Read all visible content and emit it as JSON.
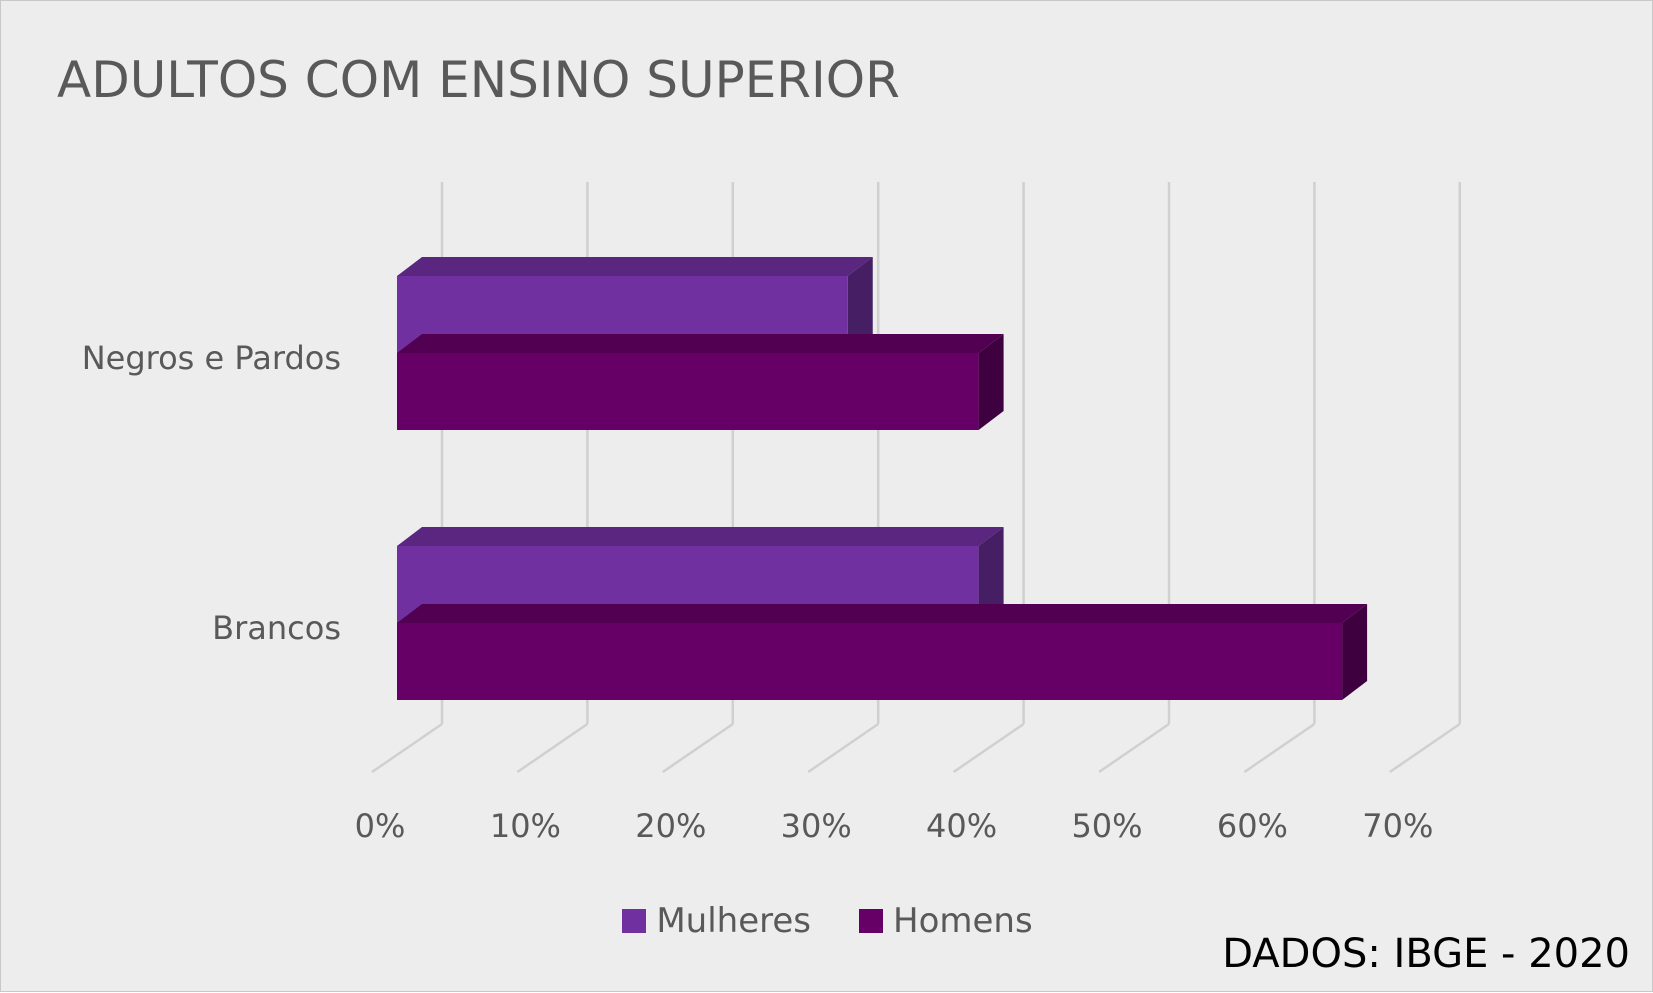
{
  "chart_data": {
    "type": "bar",
    "orientation": "horizontal",
    "title": "ADULTOS COM ENSINO SUPERIOR",
    "categories": [
      "Negros e Pardos",
      "Brancos"
    ],
    "series": [
      {
        "name": "Mulheres",
        "values": [
          31,
          40
        ],
        "color": "#7030a0"
      },
      {
        "name": "Homens",
        "values": [
          40,
          65
        ],
        "color": "#660066"
      }
    ],
    "x_ticks": [
      "0%",
      "10%",
      "20%",
      "30%",
      "40%",
      "50%",
      "60%",
      "70%"
    ],
    "xlim": [
      0,
      70
    ],
    "grid": true,
    "legend_position": "bottom",
    "style": "3d"
  },
  "source_note": "DADOS: IBGE - 2020"
}
